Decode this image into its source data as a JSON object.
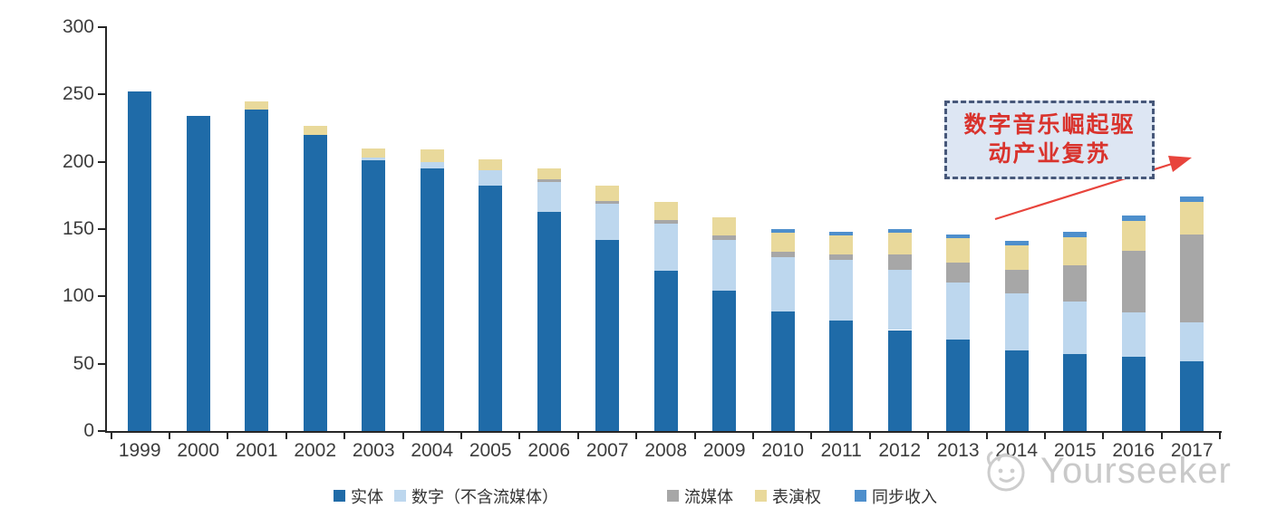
{
  "chart_data": {
    "type": "bar",
    "stacked": true,
    "grid": false,
    "legend_position": "bottom",
    "unit_note": "",
    "title": "",
    "xlabel": "",
    "ylabel": "",
    "ylim": [
      0,
      300
    ],
    "yticks": [
      0,
      50,
      100,
      150,
      200,
      250,
      300
    ],
    "categories": [
      "1999",
      "2000",
      "2001",
      "2002",
      "2003",
      "2004",
      "2005",
      "2006",
      "2007",
      "2008",
      "2009",
      "2010",
      "2011",
      "2012",
      "2013",
      "2014",
      "2015",
      "2016",
      "2017"
    ],
    "series": [
      {
        "name": "实体",
        "color": "#1f6ba8",
        "values": [
          252,
          234,
          239,
          220,
          201,
          195,
          182,
          163,
          142,
          119,
          104,
          89,
          82,
          75,
          68,
          60,
          57,
          55,
          52
        ]
      },
      {
        "name": "数字（不含流媒体）",
        "color": "#bdd7ee",
        "values": [
          0,
          0,
          0,
          0,
          2,
          5,
          12,
          22,
          27,
          35,
          38,
          40,
          45,
          45,
          42,
          42,
          39,
          33,
          29
        ]
      },
      {
        "name": "流媒体",
        "color": "#a7a7a7",
        "values": [
          0,
          0,
          0,
          0,
          0,
          0,
          0,
          2,
          2,
          3,
          3,
          4,
          4,
          11,
          15,
          18,
          27,
          46,
          65
        ]
      },
      {
        "name": "表演权",
        "color": "#e9d99b",
        "values": [
          0,
          0,
          6,
          7,
          7,
          9,
          8,
          8,
          11,
          13,
          14,
          14,
          14,
          16,
          18,
          18,
          21,
          22,
          24
        ]
      },
      {
        "name": "同步收入",
        "color": "#4e8fcc",
        "values": [
          0,
          0,
          0,
          0,
          0,
          0,
          0,
          0,
          0,
          0,
          0,
          3,
          3,
          3,
          3,
          3,
          4,
          4,
          4
        ]
      }
    ],
    "annotations": [
      {
        "text": "数字音乐崛起驱动产业复苏",
        "style": "dashed-box-with-arrow"
      }
    ]
  },
  "annotation": {
    "line1": "数字音乐崛起驱",
    "line2": "动产业复苏",
    "text_color": "#d9332d",
    "box_fill": "#dde6f3",
    "box_border": "#47587a",
    "arrow_color": "#e8443c"
  },
  "watermark": {
    "text": "Yourseeker",
    "color": "#c9c9c9"
  },
  "axis": {
    "color": "#262626",
    "label_color": "#3d3d3d"
  }
}
